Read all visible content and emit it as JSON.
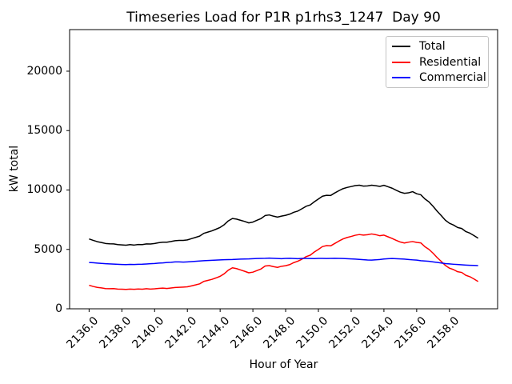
{
  "chart_data": {
    "type": "line",
    "title": "Timeseries Load for P1R p1rhs3_1247  Day 90",
    "xlabel": "Hour of Year",
    "ylabel": "kW total",
    "xlim": [
      2134.81,
      2160.94
    ],
    "ylim": [
      0,
      23500
    ],
    "grid": false,
    "legend_position": "upper right",
    "x_ticks": [
      2136,
      2138,
      2140,
      2142,
      2144,
      2146,
      2148,
      2150,
      2152,
      2154,
      2156,
      2158
    ],
    "x_tick_labels": [
      "2136.0",
      "2138.0",
      "2140.0",
      "2142.0",
      "2144.0",
      "2146.0",
      "2148.0",
      "2150.0",
      "2152.0",
      "2154.0",
      "2156.0",
      "2158.0"
    ],
    "y_ticks": [
      0,
      5000,
      10000,
      15000,
      20000
    ],
    "y_tick_labels": [
      "0",
      "5000",
      "10000",
      "15000",
      "20000"
    ],
    "x_start": 2136.0,
    "x_step": 0.25,
    "x_end": 2159.75,
    "series": [
      {
        "name": "Total",
        "color": "#000000",
        "values": [
          5880,
          5760,
          5650,
          5580,
          5500,
          5470,
          5460,
          5405,
          5380,
          5350,
          5400,
          5365,
          5415,
          5405,
          5465,
          5455,
          5495,
          5565,
          5605,
          5605,
          5665,
          5735,
          5755,
          5760,
          5800,
          5905,
          6010,
          6120,
          6350,
          6455,
          6560,
          6700,
          6850,
          7080,
          7400,
          7600,
          7550,
          7450,
          7350,
          7230,
          7300,
          7450,
          7600,
          7850,
          7900,
          7800,
          7720,
          7800,
          7870,
          7970,
          8125,
          8230,
          8425,
          8630,
          8740,
          9005,
          9245,
          9480,
          9555,
          9540,
          9750,
          9940,
          10110,
          10215,
          10290,
          10370,
          10405,
          10330,
          10345,
          10400,
          10360,
          10300,
          10395,
          10275,
          10150,
          9980,
          9820,
          9720,
          9760,
          9860,
          9685,
          9600,
          9250,
          8995,
          8630,
          8215,
          7845,
          7455,
          7200,
          7050,
          6845,
          6760,
          6500,
          6365,
          6160,
          5940
        ]
      },
      {
        "name": "Residential",
        "color": "#ff0000",
        "values": [
          1980,
          1880,
          1800,
          1760,
          1700,
          1690,
          1700,
          1660,
          1650,
          1630,
          1660,
          1640,
          1670,
          1650,
          1690,
          1660,
          1680,
          1720,
          1740,
          1710,
          1750,
          1790,
          1810,
          1830,
          1850,
          1930,
          2010,
          2100,
          2305,
          2390,
          2480,
          2600,
          2735,
          2950,
          3255,
          3450,
          3385,
          3270,
          3155,
          3030,
          3085,
          3220,
          3355,
          3600,
          3635,
          3550,
          3485,
          3580,
          3625,
          3720,
          3890,
          4010,
          4180,
          4390,
          4510,
          4780,
          5000,
          5240,
          5320,
          5300,
          5500,
          5700,
          5880,
          6000,
          6090,
          6190,
          6250,
          6200,
          6240,
          6300,
          6240,
          6150,
          6200,
          6060,
          5920,
          5760,
          5620,
          5540,
          5610,
          5660,
          5590,
          5550,
          5230,
          5000,
          4680,
          4310,
          3990,
          3650,
          3420,
          3300,
          3120,
          3060,
          2820,
          2700,
          2510,
          2300
        ]
      },
      {
        "name": "Commercial",
        "color": "#0000ff",
        "values": [
          3900,
          3880,
          3850,
          3820,
          3800,
          3780,
          3760,
          3745,
          3730,
          3720,
          3740,
          3725,
          3745,
          3755,
          3775,
          3795,
          3815,
          3845,
          3865,
          3895,
          3915,
          3945,
          3945,
          3930,
          3950,
          3975,
          4000,
          4020,
          4045,
          4065,
          4080,
          4100,
          4115,
          4130,
          4145,
          4150,
          4165,
          4180,
          4195,
          4200,
          4215,
          4230,
          4245,
          4250,
          4265,
          4250,
          4235,
          4220,
          4245,
          4250,
          4235,
          4220,
          4245,
          4240,
          4230,
          4225,
          4245,
          4240,
          4235,
          4240,
          4250,
          4240,
          4230,
          4215,
          4200,
          4180,
          4155,
          4130,
          4105,
          4100,
          4120,
          4150,
          4195,
          4215,
          4230,
          4220,
          4200,
          4180,
          4150,
          4120,
          4095,
          4050,
          4020,
          3995,
          3950,
          3905,
          3855,
          3805,
          3780,
          3750,
          3725,
          3700,
          3680,
          3665,
          3650,
          3640
        ]
      }
    ]
  }
}
